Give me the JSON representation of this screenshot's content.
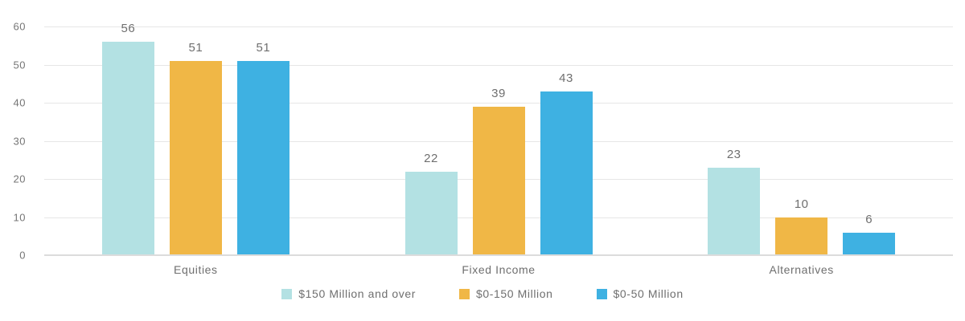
{
  "chart_data": {
    "type": "bar",
    "categories": [
      "Equities",
      "Fixed Income",
      "Alternatives"
    ],
    "series": [
      {
        "name": "$150 Million and over",
        "color": "#b3e1e3",
        "values": [
          56,
          22,
          23
        ]
      },
      {
        "name": "$0-150 Million",
        "color": "#f0b746",
        "values": [
          51,
          39,
          10
        ]
      },
      {
        "name": "$0-50 Million",
        "color": "#3eb1e2",
        "values": [
          51,
          43,
          6
        ]
      }
    ],
    "title": "",
    "xlabel": "",
    "ylabel": "",
    "ylim": [
      0,
      60
    ],
    "yticks": [
      0,
      10,
      20,
      30,
      40,
      50,
      60
    ],
    "grid": true,
    "value_labels": true,
    "legend_position": "bottom"
  },
  "colors": {
    "grid": "#e6e6e6",
    "axis_baseline": "#dcdcdc",
    "tick_text": "#757575",
    "label_text": "#6f6f6f",
    "background": "#ffffff"
  }
}
